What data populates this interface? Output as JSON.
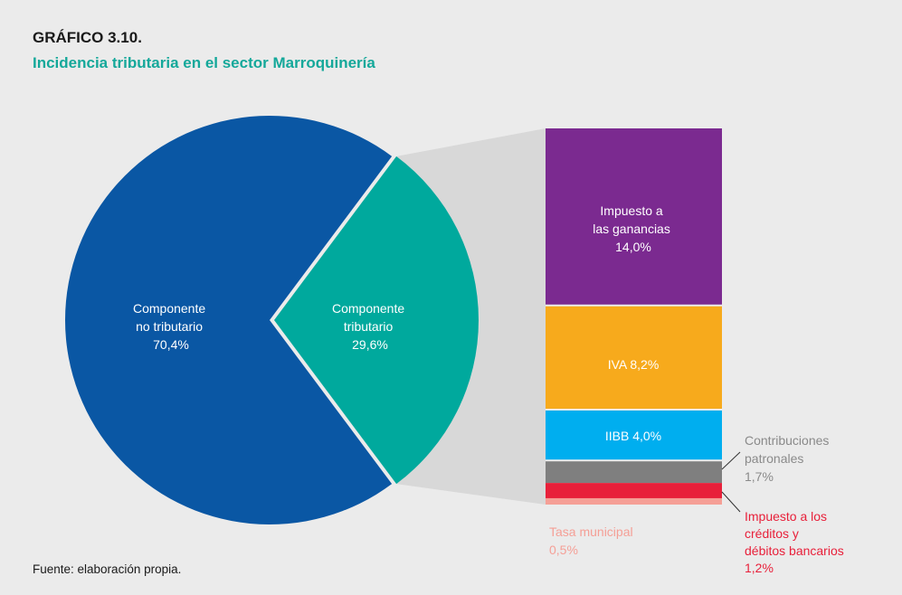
{
  "header": {
    "chart_number": "GRÁFICO 3.10.",
    "title": "Incidencia tributaria en el sector Marroquinería"
  },
  "source": "Fuente: elaboración propia.",
  "colors": {
    "background": "#ebebeb",
    "title": "#14a89a",
    "no_tributario": "#0a57a4",
    "tributario": "#00a99d",
    "ganancias": "#7b2a90",
    "iva": "#f7aa1c",
    "iibb": "#00aeef",
    "contribuciones": "#7f7f7f",
    "creditos_debitos": "#e8203a",
    "tasa_municipal": "#f59f96",
    "connector": "#d8d8d8"
  },
  "chart_data": [
    {
      "type": "pie",
      "slices": [
        {
          "label_lines": [
            "Componente",
            "no tributario"
          ],
          "value": 70.4,
          "value_text": "70,4%"
        },
        {
          "label_lines": [
            "Componente",
            "tributario"
          ],
          "value": 29.6,
          "value_text": "29,6%"
        }
      ]
    },
    {
      "type": "bar",
      "stacked": true,
      "total": 29.6,
      "segments": [
        {
          "label_lines": [
            "Impuesto a",
            "las ganancias"
          ],
          "value": 14.0,
          "value_text": "14,0%"
        },
        {
          "label_lines": [
            "IVA 8,2%"
          ],
          "value": 8.2,
          "value_text": ""
        },
        {
          "label_lines": [
            "IIBB 4,0%"
          ],
          "value": 4.0,
          "value_text": ""
        },
        {
          "label_lines": [
            "Contribuciones",
            "patronales"
          ],
          "value": 1.7,
          "value_text": "1,7%"
        },
        {
          "label_lines": [
            "Impuesto a los",
            "créditos y",
            "débitos bancarios"
          ],
          "value": 1.2,
          "value_text": "1,2%"
        },
        {
          "label_lines": [
            "Tasa municipal"
          ],
          "value": 0.5,
          "value_text": "0,5%"
        }
      ]
    }
  ]
}
